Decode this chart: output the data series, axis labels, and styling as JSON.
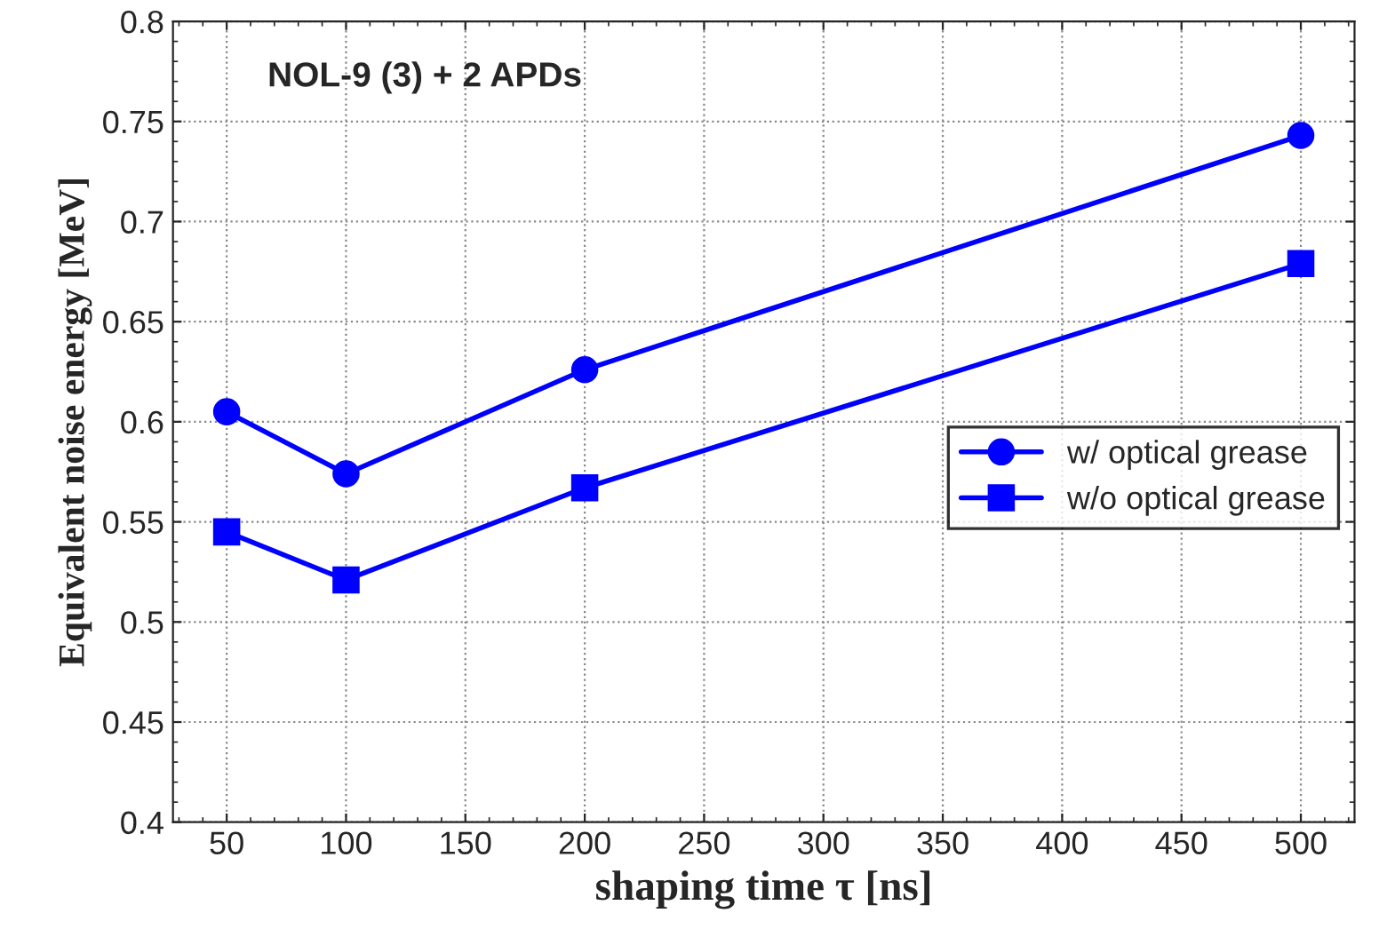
{
  "chart_data": {
    "type": "line",
    "title": "NOL-9 (3) + 2 APDs",
    "xlabel": "shaping time τ [ns]",
    "ylabel": "Equivalent noise energy [MeV]",
    "x": [
      50,
      100,
      200,
      500
    ],
    "series": [
      {
        "name": "w/ optical grease",
        "color": "#0000ff",
        "marker": "circle",
        "values": [
          0.605,
          0.574,
          0.626,
          0.743
        ]
      },
      {
        "name": "w/o optical grease",
        "color": "#0000ff",
        "marker": "square",
        "values": [
          0.545,
          0.521,
          0.567,
          0.679
        ]
      }
    ],
    "xlim": [
      27.5,
      522.5
    ],
    "xticks": [
      50,
      100,
      150,
      200,
      250,
      300,
      350,
      400,
      450,
      500
    ],
    "ylim": [
      0.4,
      0.8
    ],
    "yticks": [
      0.4,
      0.45,
      0.5,
      0.55,
      0.6,
      0.65,
      0.7,
      0.75,
      0.8
    ],
    "grid": true,
    "legend": "right",
    "line_style": "solid"
  }
}
